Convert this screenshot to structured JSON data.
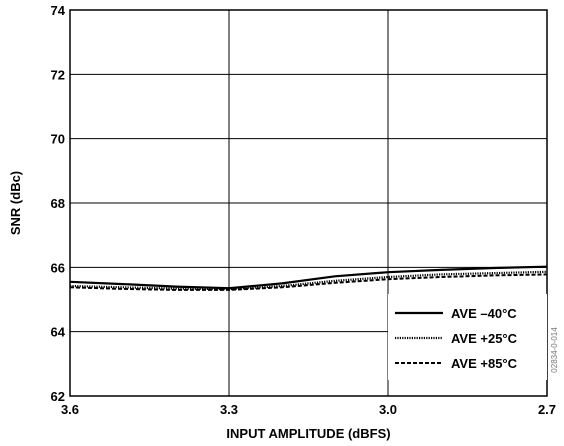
{
  "chart_data": {
    "type": "line",
    "title": "",
    "xlabel": "INPUT AMPLITUDE (dBFS)",
    "ylabel": "SNR (dBc)",
    "xlim": [
      3.6,
      2.7
    ],
    "ylim": [
      62,
      74
    ],
    "x_reversed": true,
    "x_ticks": [
      "3.6",
      "3.3",
      "3.0",
      "2.7"
    ],
    "y_ticks": [
      "62",
      "64",
      "66",
      "68",
      "70",
      "72",
      "74"
    ],
    "grid": true,
    "legend_position": "bottom-right",
    "side_id": "02834-0-014",
    "series": [
      {
        "name": "AVE –40°C",
        "line_style": "solid",
        "x": [
          3.6,
          3.5,
          3.4,
          3.3,
          3.2,
          3.1,
          3.0,
          2.9,
          2.8,
          2.7
        ],
        "y": [
          65.55,
          65.48,
          65.4,
          65.35,
          65.5,
          65.72,
          65.85,
          65.92,
          65.98,
          66.02
        ]
      },
      {
        "name": "AVE +25°C",
        "line_style": "dotted",
        "x": [
          3.6,
          3.5,
          3.4,
          3.3,
          3.2,
          3.1,
          3.0,
          2.9,
          2.8,
          2.7
        ],
        "y": [
          65.42,
          65.38,
          65.34,
          65.32,
          65.42,
          65.58,
          65.7,
          65.78,
          65.82,
          65.86
        ]
      },
      {
        "name": "AVE +85°C",
        "line_style": "dashed",
        "x": [
          3.6,
          3.5,
          3.4,
          3.3,
          3.2,
          3.1,
          3.0,
          2.9,
          2.8,
          2.7
        ],
        "y": [
          65.38,
          65.33,
          65.3,
          65.3,
          65.38,
          65.52,
          65.63,
          65.7,
          65.75,
          65.78
        ]
      }
    ]
  }
}
